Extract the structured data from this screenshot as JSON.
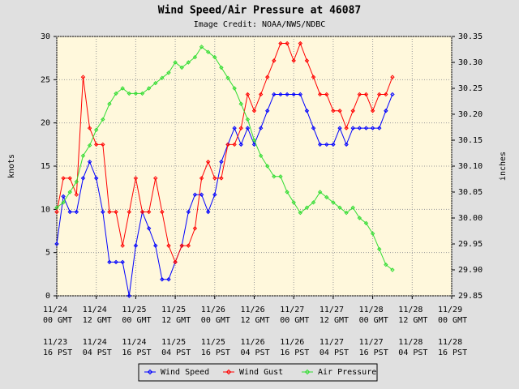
{
  "chart_data": {
    "type": "line",
    "title": "Wind Speed/Air Pressure at 46087",
    "subtitle": "Image Credit: NOAA/NWS/NDBC",
    "ylabel": "knots",
    "y2label": "inches",
    "grid": true,
    "legend": "bottom",
    "xlim": [
      "11/24 00",
      "11/29 00"
    ],
    "xticks": [
      {
        "value": "11/24 00",
        "label": [
          "11/24",
          "00 GMT"
        ],
        "label2": [
          "11/23",
          "16 PST"
        ]
      },
      {
        "value": "11/24 12",
        "label": [
          "11/24",
          "12 GMT"
        ],
        "label2": [
          "11/24",
          "04 PST"
        ]
      },
      {
        "value": "11/25 00",
        "label": [
          "11/25",
          "00 GMT"
        ],
        "label2": [
          "11/24",
          "16 PST"
        ]
      },
      {
        "value": "11/25 12",
        "label": [
          "11/25",
          "12 GMT"
        ],
        "label2": [
          "11/25",
          "04 PST"
        ]
      },
      {
        "value": "11/26 00",
        "label": [
          "11/26",
          "00 GMT"
        ],
        "label2": [
          "11/25",
          "16 PST"
        ]
      },
      {
        "value": "11/26 12",
        "label": [
          "11/26",
          "12 GMT"
        ],
        "label2": [
          "11/26",
          "04 PST"
        ]
      },
      {
        "value": "11/27 00",
        "label": [
          "11/27",
          "00 GMT"
        ],
        "label2": [
          "11/26",
          "16 PST"
        ]
      },
      {
        "value": "11/27 12",
        "label": [
          "11/27",
          "12 GMT"
        ],
        "label2": [
          "11/27",
          "04 PST"
        ]
      },
      {
        "value": "11/28 00",
        "label": [
          "11/28",
          "00 GMT"
        ],
        "label2": [
          "11/27",
          "16 PST"
        ]
      },
      {
        "value": "11/28 12",
        "label": [
          "11/28",
          "12 GMT"
        ],
        "label2": [
          "11/28",
          "04 PST"
        ]
      },
      {
        "value": "11/29 00",
        "label": [
          "11/29",
          "00 GMT"
        ],
        "label2": [
          "11/28",
          "16 PST"
        ]
      }
    ],
    "ylim": [
      0,
      30
    ],
    "yticks": [
      0,
      5,
      10,
      15,
      20,
      25,
      30
    ],
    "y2lim": [
      29.85,
      30.35
    ],
    "y2ticks": [
      29.85,
      {
        "value": 29.9,
        "label": "29.90"
      },
      29.95,
      {
        "value": 30,
        "label": "30.00"
      },
      30.05,
      {
        "value": 30.1,
        "label": "30.10"
      },
      30.15,
      {
        "value": 30.2,
        "label": "30.20"
      },
      30.25,
      {
        "value": 30.3,
        "label": "30.30"
      },
      30.35
    ],
    "x": [
      "11/24 00",
      "11/24 02",
      "11/24 04",
      "11/24 06",
      "11/24 08",
      "11/24 10",
      "11/24 12",
      "11/24 14",
      "11/24 16",
      "11/24 18",
      "11/24 20",
      "11/24 22",
      "11/25 00",
      "11/25 02",
      "11/25 04",
      "11/25 06",
      "11/25 08",
      "11/25 10",
      "11/25 12",
      "11/25 14",
      "11/25 16",
      "11/25 18",
      "11/25 20",
      "11/25 22",
      "11/26 00",
      "11/26 02",
      "11/26 04",
      "11/26 06",
      "11/26 08",
      "11/26 10",
      "11/26 12",
      "11/26 14",
      "11/26 16",
      "11/26 18",
      "11/26 20",
      "11/26 22",
      "11/27 00",
      "11/27 02",
      "11/27 04",
      "11/27 06",
      "11/27 08",
      "11/27 10",
      "11/27 12",
      "11/27 14",
      "11/27 16",
      "11/27 18",
      "11/27 20",
      "11/27 22",
      "11/28 00",
      "11/28 02",
      "11/28 04",
      "11/28 06"
    ],
    "series": [
      {
        "name": "Wind Speed",
        "color": "#0000ff",
        "values": [
          6,
          11.5,
          9.7,
          9.7,
          13.6,
          15.5,
          13.6,
          9.7,
          3.9,
          3.9,
          3.9,
          0,
          5.8,
          9.7,
          7.8,
          5.8,
          1.9,
          1.9,
          3.9,
          5.8,
          9.7,
          11.7,
          11.7,
          9.7,
          11.7,
          15.5,
          17.5,
          19.4,
          17.5,
          19.4,
          17.5,
          19.4,
          21.4,
          23.3,
          23.3,
          23.3,
          23.3,
          23.3,
          21.4,
          19.4,
          17.5,
          17.5,
          17.5,
          19.4,
          17.5,
          19.4,
          19.4,
          19.4,
          19.4,
          19.4,
          21.4,
          23.3
        ]
      },
      {
        "name": "Wind Gust",
        "color": "#ff0000",
        "values": [
          9.7,
          13.6,
          13.6,
          11.7,
          25.3,
          19.4,
          17.5,
          17.5,
          9.7,
          9.7,
          5.8,
          9.7,
          13.6,
          9.7,
          9.7,
          13.6,
          9.7,
          5.8,
          3.9,
          5.8,
          5.8,
          7.8,
          13.6,
          15.5,
          13.6,
          13.6,
          17.5,
          17.5,
          19.4,
          23.3,
          21.4,
          23.3,
          25.3,
          27.2,
          29.2,
          29.2,
          27.2,
          29.2,
          27.2,
          25.3,
          23.3,
          23.3,
          21.4,
          21.4,
          19.4,
          21.4,
          23.3,
          23.3,
          21.4,
          23.3,
          23.3,
          25.3
        ]
      },
      {
        "name": "Air Pressure",
        "color": "#33dd33",
        "axis": "y2",
        "values": [
          30.02,
          30.03,
          30.05,
          30.07,
          30.12,
          30.14,
          30.17,
          30.19,
          30.22,
          30.24,
          30.25,
          30.24,
          30.24,
          30.24,
          30.25,
          30.26,
          30.27,
          30.28,
          30.3,
          30.29,
          30.3,
          30.31,
          30.33,
          30.32,
          30.31,
          30.29,
          30.27,
          30.25,
          30.22,
          30.19,
          30.15,
          30.12,
          30.1,
          30.08,
          30.08,
          30.05,
          30.03,
          30.01,
          30.02,
          30.03,
          30.05,
          30.04,
          30.03,
          30.02,
          30.01,
          30.02,
          30,
          29.99,
          29.97,
          29.94,
          29.91,
          29.9
        ]
      }
    ]
  }
}
